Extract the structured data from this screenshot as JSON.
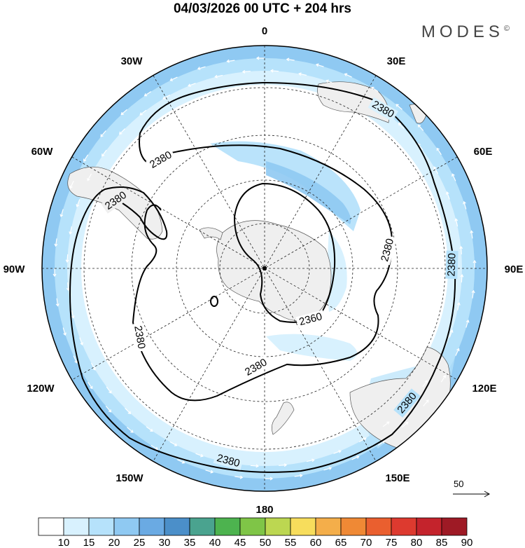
{
  "header": {
    "title": "04/03/2026  00 UTC  + 204 hrs",
    "brand": "MODES",
    "brand_mark": "©"
  },
  "map": {
    "projection": "south-polar-stereographic",
    "longitude_labels": {
      "top": "0",
      "bottom": "180",
      "left": "90W",
      "right": "90E",
      "n30w": "30W",
      "n30e": "30E",
      "n60w": "60W",
      "n60e": "60E",
      "n120w": "120W",
      "n120e": "120E",
      "n150w": "150W",
      "n150e": "150E"
    },
    "contour_labels": [
      "2380",
      "2380",
      "2380",
      "2380",
      "2380",
      "2380",
      "2380",
      "2380",
      "2360",
      "2380"
    ],
    "reference_vector_label": "50"
  },
  "colorbar": {
    "labels": [
      "10",
      "15",
      "20",
      "25",
      "30",
      "35",
      "40",
      "45",
      "50",
      "55",
      "60",
      "65",
      "70",
      "75",
      "80",
      "85",
      "90"
    ],
    "colors": [
      "#ffffff",
      "#d8f1fe",
      "#b6e2fb",
      "#8fc9f2",
      "#6aaae3",
      "#4b8fc9",
      "#4aa38f",
      "#4db34f",
      "#7fc547",
      "#bcd751",
      "#f7dd5c",
      "#f4ae4a",
      "#ef8935",
      "#ea5f2f",
      "#dd3a2f",
      "#c4232c",
      "#9e1a25"
    ]
  },
  "colors": {
    "land": "#efefef",
    "speed_light": "#d8f1fe",
    "speed_mid": "#b6e2fb",
    "speed_strong": "#8fc9f2"
  }
}
